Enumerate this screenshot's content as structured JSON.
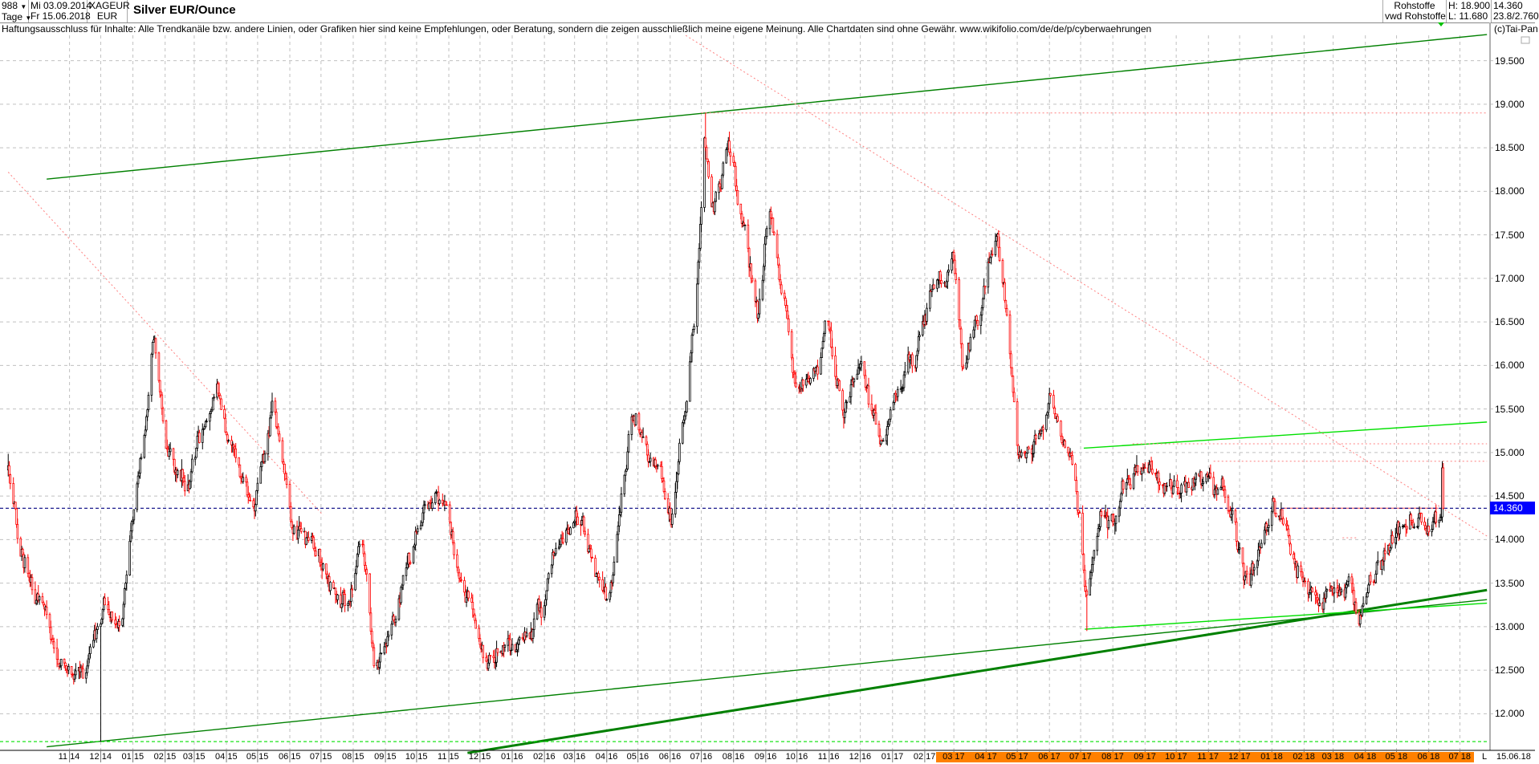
{
  "header": {
    "bar_count": "988",
    "period": "Tage",
    "date_from": "Mi 03.09.2014",
    "date_to": "Fr 15.06.2018",
    "symbol": "XAGEUR",
    "currency": "EUR",
    "title": "Silver EUR/Ounce",
    "group": "Rohstoffe",
    "source": "vwd Rohstoffe",
    "high": "H: 18.900",
    "low": "L: 11.680",
    "last": "14.360",
    "extra": "23.8/2.760"
  },
  "disclaimer": "Haftungsausschluss für Inhalte: Alle Trendkanäle bzw. andere Linien, oder Grafiken hier sind keine Empfehlungen, oder Beratung, sondern die zeigen ausschließlich meine eigene Meinung. Alle Chartdaten sind ohne Gewähr.  www.wikifolio.com/de/de/p/cyberwaehrungen",
  "copyright": "(c)Tai-Pan",
  "footer": {
    "mode": "L",
    "date": "15.06.18"
  },
  "colors": {
    "up": "#000000",
    "down": "#ff0000",
    "channel_dark": "#008000",
    "channel_light": "#00e000",
    "resistance": "#ff8080",
    "last_line": "#000080",
    "highlight_band": "#ff8000"
  },
  "chart_data": {
    "type": "candlestick",
    "title": "Silver EUR/Ounce",
    "ylim": [
      11.5,
      19.9
    ],
    "y_ticks": [
      "12.000",
      "12.500",
      "13.000",
      "13.500",
      "14.000",
      "14.500",
      "15.000",
      "15.500",
      "16.000",
      "16.500",
      "17.000",
      "17.500",
      "18.000",
      "18.500",
      "19.000",
      "19.500"
    ],
    "x_ticks": [
      {
        "date": "2014-11-01",
        "label": "11 14"
      },
      {
        "date": "2014-12-01",
        "label": "12 14"
      },
      {
        "date": "2015-01-01",
        "label": "01 15"
      },
      {
        "date": "2015-02-01",
        "label": "02 15"
      },
      {
        "date": "2015-03-01",
        "label": "03 15"
      },
      {
        "date": "2015-04-01",
        "label": "04 15"
      },
      {
        "date": "2015-05-01",
        "label": "05 15"
      },
      {
        "date": "2015-06-01",
        "label": "06 15"
      },
      {
        "date": "2015-07-01",
        "label": "07 15"
      },
      {
        "date": "2015-08-01",
        "label": "08 15"
      },
      {
        "date": "2015-09-01",
        "label": "09 15"
      },
      {
        "date": "2015-10-01",
        "label": "10 15"
      },
      {
        "date": "2015-11-01",
        "label": "11 15"
      },
      {
        "date": "2015-12-01",
        "label": "12 15"
      },
      {
        "date": "2016-01-01",
        "label": "01 16"
      },
      {
        "date": "2016-02-01",
        "label": "02 16"
      },
      {
        "date": "2016-03-01",
        "label": "03 16"
      },
      {
        "date": "2016-04-01",
        "label": "04 16"
      },
      {
        "date": "2016-05-01",
        "label": "05 16"
      },
      {
        "date": "2016-06-01",
        "label": "06 16"
      },
      {
        "date": "2016-07-01",
        "label": "07 16"
      },
      {
        "date": "2016-08-01",
        "label": "08 16"
      },
      {
        "date": "2016-09-01",
        "label": "09 16"
      },
      {
        "date": "2016-10-01",
        "label": "10 16"
      },
      {
        "date": "2016-11-01",
        "label": "11 16"
      },
      {
        "date": "2016-12-01",
        "label": "12 16"
      },
      {
        "date": "2017-01-01",
        "label": "01 17"
      },
      {
        "date": "2017-02-01",
        "label": "02 17"
      },
      {
        "date": "2017-03-01",
        "label": "03 17",
        "highlight": true
      },
      {
        "date": "2017-04-01",
        "label": "04 17",
        "highlight": true
      },
      {
        "date": "2017-05-01",
        "label": "05 17",
        "highlight": true
      },
      {
        "date": "2017-06-01",
        "label": "06 17",
        "highlight": true
      },
      {
        "date": "2017-07-01",
        "label": "07 17",
        "highlight": true
      },
      {
        "date": "2017-08-01",
        "label": "08 17",
        "highlight": true
      },
      {
        "date": "2017-09-01",
        "label": "09 17",
        "highlight": true
      },
      {
        "date": "2017-10-01",
        "label": "10 17",
        "highlight": true
      },
      {
        "date": "2017-11-01",
        "label": "11 17",
        "highlight": true
      },
      {
        "date": "2017-12-01",
        "label": "12 17",
        "highlight": true
      },
      {
        "date": "2018-01-01",
        "label": "01 18",
        "highlight": true
      },
      {
        "date": "2018-02-01",
        "label": "02 18",
        "highlight": true
      },
      {
        "date": "2018-03-01",
        "label": "03 18",
        "highlight": true
      },
      {
        "date": "2018-04-01",
        "label": "04 18",
        "highlight": true
      },
      {
        "date": "2018-05-01",
        "label": "05 18",
        "highlight": true
      },
      {
        "date": "2018-06-01",
        "label": "06 18",
        "highlight": true
      },
      {
        "date": "2018-07-01",
        "label": "07 18",
        "highlight": true
      }
    ],
    "grid": true,
    "last_price": 14.36,
    "high": 18.9,
    "low": 11.68,
    "price_path": [
      [
        "2014-09-03",
        14.8
      ],
      [
        "2014-09-17",
        13.8
      ],
      [
        "2014-10-01",
        13.5
      ],
      [
        "2014-11-01",
        12.3
      ],
      [
        "2014-12-01",
        12.9
      ],
      [
        "2014-12-07",
        13.0
      ],
      [
        "2014-12-21",
        13.0
      ],
      [
        "2015-01-05",
        14.5
      ],
      [
        "2015-01-21",
        16.4
      ],
      [
        "2015-02-02",
        15.0
      ],
      [
        "2015-02-21",
        14.5
      ],
      [
        "2015-03-24",
        15.7
      ],
      [
        "2015-04-12",
        14.8
      ],
      [
        "2015-04-28",
        14.3
      ],
      [
        "2015-05-16",
        15.6
      ],
      [
        "2015-06-03",
        14.1
      ],
      [
        "2015-07-01",
        13.9
      ],
      [
        "2015-07-25",
        13.2
      ],
      [
        "2015-08-10",
        13.9
      ],
      [
        "2015-08-22",
        12.4
      ],
      [
        "2015-09-10",
        13.1
      ],
      [
        "2015-10-03",
        14.2
      ],
      [
        "2015-10-25",
        14.6
      ],
      [
        "2015-11-11",
        13.4
      ],
      [
        "2015-12-09",
        12.6
      ],
      [
        "2015-12-28",
        12.8
      ],
      [
        "2016-01-16",
        12.8
      ],
      [
        "2016-02-14",
        13.8
      ],
      [
        "2016-03-03",
        14.1
      ],
      [
        "2016-04-01",
        13.2
      ],
      [
        "2016-04-10",
        13.8
      ],
      [
        "2016-04-24",
        15.5
      ],
      [
        "2016-05-12",
        15.0
      ],
      [
        "2016-06-01",
        14.3
      ],
      [
        "2016-06-15",
        15.3
      ],
      [
        "2016-06-26",
        16.5
      ],
      [
        "2016-07-04",
        18.6
      ],
      [
        "2016-07-13",
        17.7
      ],
      [
        "2016-07-27",
        18.4
      ],
      [
        "2016-08-10",
        17.5
      ],
      [
        "2016-08-25",
        16.6
      ],
      [
        "2016-09-04",
        17.8
      ],
      [
        "2016-09-18",
        16.8
      ],
      [
        "2016-10-01",
        15.5
      ],
      [
        "2016-10-15",
        16.0
      ],
      [
        "2016-10-30",
        16.5
      ],
      [
        "2016-11-13",
        15.5
      ],
      [
        "2016-12-02",
        15.8
      ],
      [
        "2016-12-25",
        15.2
      ],
      [
        "2017-01-09",
        15.8
      ],
      [
        "2017-01-23",
        16.0
      ],
      [
        "2017-02-07",
        16.8
      ],
      [
        "2017-02-28",
        17.4
      ],
      [
        "2017-03-10",
        16.0
      ],
      [
        "2017-03-24",
        16.5
      ],
      [
        "2017-04-12",
        17.5
      ],
      [
        "2017-04-21",
        16.6
      ],
      [
        "2017-05-01",
        15.0
      ],
      [
        "2017-05-15",
        15.0
      ],
      [
        "2017-06-03",
        15.7
      ],
      [
        "2017-06-17",
        14.9
      ],
      [
        "2017-07-01",
        14.1
      ],
      [
        "2017-07-06",
        13.3
      ],
      [
        "2017-07-20",
        14.2
      ],
      [
        "2017-08-08",
        14.4
      ],
      [
        "2017-09-06",
        15.0
      ],
      [
        "2017-09-20",
        14.4
      ],
      [
        "2017-10-08",
        14.6
      ],
      [
        "2017-11-02",
        14.8
      ],
      [
        "2017-11-20",
        14.4
      ],
      [
        "2017-12-09",
        13.4
      ],
      [
        "2018-01-02",
        14.3
      ],
      [
        "2018-01-25",
        13.8
      ],
      [
        "2018-02-09",
        13.3
      ],
      [
        "2018-03-07",
        13.4
      ],
      [
        "2018-03-26",
        13.3
      ],
      [
        "2018-04-19",
        13.8
      ],
      [
        "2018-05-12",
        14.2
      ],
      [
        "2018-06-01",
        14.1
      ],
      [
        "2018-06-13",
        14.3
      ],
      [
        "2018-06-14",
        14.85
      ],
      [
        "2018-06-15",
        14.36
      ]
    ],
    "extremes": [
      {
        "date": "2014-12-01",
        "low": 11.68
      },
      {
        "date": "2016-07-05",
        "high": 18.9
      },
      {
        "date": "2017-07-07",
        "low": 12.95
      }
    ],
    "lines": [
      {
        "name": "upper-channel",
        "style": "solid",
        "color": "#008000",
        "from": [
          "2014-10-10",
          18.14
        ],
        "to": [
          "2018-07-27",
          19.8
        ]
      },
      {
        "name": "lower-channel",
        "style": "solid",
        "color": "#008000",
        "from": [
          "2014-10-10",
          11.62
        ],
        "to": [
          "2018-07-27",
          13.31
        ]
      },
      {
        "name": "support-thick",
        "style": "thick",
        "color": "#008000",
        "from": [
          "2015-11-19",
          11.55
        ],
        "to": [
          "2018-07-27",
          13.42
        ]
      },
      {
        "name": "support-light",
        "style": "solid",
        "color": "#00e000",
        "from": [
          "2017-07-05",
          12.97
        ],
        "to": [
          "2018-07-27",
          13.27
        ]
      },
      {
        "name": "resistance-light",
        "style": "solid",
        "color": "#00e000",
        "from": [
          "2017-07-04",
          15.05
        ],
        "to": [
          "2018-07-27",
          15.35
        ]
      },
      {
        "name": "downtrend-2015",
        "style": "dotted",
        "color": "#ff8080",
        "from": [
          "2014-09-03",
          18.22
        ],
        "to": [
          "2015-07-03",
          14.28
        ]
      },
      {
        "name": "downtrend-2016",
        "style": "dotted",
        "color": "#ff8080",
        "from": [
          "2016-06-16",
          19.79
        ],
        "to": [
          "2018-07-27",
          14.04
        ]
      },
      {
        "name": "high-18.9",
        "style": "dotted",
        "color": "#ff8080",
        "from": [
          "2016-07-01",
          18.9
        ],
        "to": [
          "2018-07-27",
          18.9
        ]
      },
      {
        "name": "level-15.1",
        "style": "dotted",
        "color": "#ff8080",
        "from": [
          "2017-08-20",
          15.1
        ],
        "to": [
          "2018-07-27",
          15.1
        ]
      },
      {
        "name": "level-14.9",
        "style": "dotted",
        "color": "#ff8080",
        "from": [
          "2017-11-06",
          14.9
        ],
        "to": [
          "2018-07-27",
          14.9
        ]
      },
      {
        "name": "level-14.36",
        "style": "solid",
        "color": "#ff8080",
        "from": [
          "2018-01-12",
          14.36
        ],
        "to": [
          "2018-06-10",
          14.36
        ]
      },
      {
        "name": "level-14.02",
        "style": "dotted",
        "color": "#ff8080",
        "from": [
          "2018-03-10",
          14.02
        ],
        "to": [
          "2018-03-25",
          14.02
        ]
      },
      {
        "name": "last-price",
        "style": "dashed",
        "color": "#000080",
        "from": [
          "2014-09-03",
          14.36
        ],
        "to": [
          "2018-07-27",
          14.36
        ],
        "full": true
      },
      {
        "name": "low-11.68",
        "style": "dashed",
        "color": "#00e000",
        "from": [
          "2014-09-03",
          11.68
        ],
        "to": [
          "2018-07-27",
          11.68
        ],
        "full": true
      }
    ]
  }
}
